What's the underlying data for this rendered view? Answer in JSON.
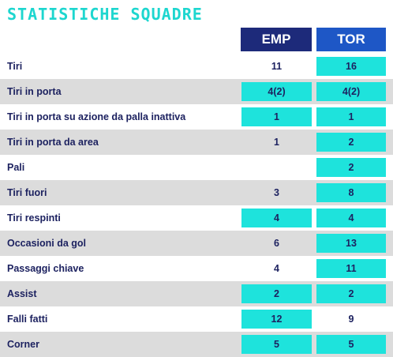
{
  "title": "STATISTICHE SQUADRE",
  "teams": {
    "home": "EMP",
    "away": "TOR"
  },
  "colors": {
    "title": "#1dd6cf",
    "emp_header": "#1d2a7a",
    "tor_header": "#1e57c6",
    "highlight": "#1ee3dc",
    "row_shade": "#dcdcdc",
    "text": "#1d2260"
  },
  "stats": [
    {
      "label": "Tiri",
      "emp": "11",
      "tor": "16",
      "emp_hl": false,
      "tor_hl": true
    },
    {
      "label": "Tiri in porta",
      "emp": "4(2)",
      "tor": "4(2)",
      "emp_hl": true,
      "tor_hl": true
    },
    {
      "label": "Tiri in porta su azione da palla inattiva",
      "emp": "1",
      "tor": "1",
      "emp_hl": true,
      "tor_hl": true
    },
    {
      "label": "Tiri in porta da area",
      "emp": "1",
      "tor": "2",
      "emp_hl": false,
      "tor_hl": true
    },
    {
      "label": "Pali",
      "emp": "",
      "tor": "2",
      "emp_hl": false,
      "tor_hl": true
    },
    {
      "label": "Tiri fuori",
      "emp": "3",
      "tor": "8",
      "emp_hl": false,
      "tor_hl": true
    },
    {
      "label": "Tiri respinti",
      "emp": "4",
      "tor": "4",
      "emp_hl": true,
      "tor_hl": true
    },
    {
      "label": "Occasioni da gol",
      "emp": "6",
      "tor": "13",
      "emp_hl": false,
      "tor_hl": true
    },
    {
      "label": "Passaggi chiave",
      "emp": "4",
      "tor": "11",
      "emp_hl": false,
      "tor_hl": true
    },
    {
      "label": "Assist",
      "emp": "2",
      "tor": "2",
      "emp_hl": true,
      "tor_hl": true
    },
    {
      "label": "Falli fatti",
      "emp": "12",
      "tor": "9",
      "emp_hl": true,
      "tor_hl": false
    },
    {
      "label": "Corner",
      "emp": "5",
      "tor": "5",
      "emp_hl": true,
      "tor_hl": true
    }
  ]
}
